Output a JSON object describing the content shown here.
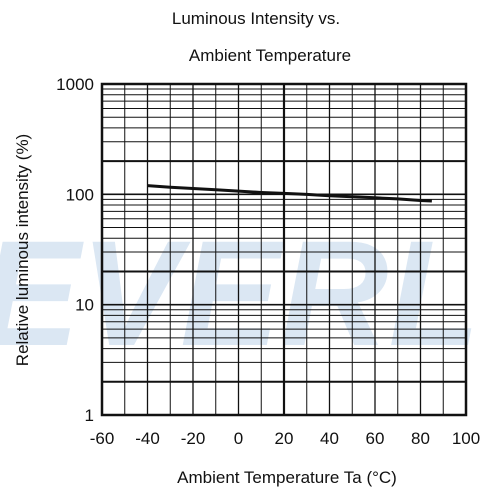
{
  "chart_data": {
    "type": "line",
    "title_lines": [
      "Luminous Intensity vs.",
      "Ambient Temperature"
    ],
    "xlabel": "Ambient Temperature Ta (°C)",
    "ylabel": "Relative luminous intensity  (%)",
    "watermark": "EVERL",
    "xlim": [
      -60,
      100
    ],
    "ylim": [
      1,
      1000
    ],
    "y_scale": "log",
    "grid": true,
    "x_ticks": [
      {
        "value": -60,
        "label": "-60"
      },
      {
        "value": -40,
        "label": "-40"
      },
      {
        "value": -20,
        "label": "-20"
      },
      {
        "value": 0,
        "label": "0"
      },
      {
        "value": 20,
        "label": "20"
      },
      {
        "value": 40,
        "label": "40"
      },
      {
        "value": 60,
        "label": "60"
      },
      {
        "value": 80,
        "label": "80"
      },
      {
        "value": 100,
        "label": "100"
      }
    ],
    "y_ticks": [
      {
        "value": 1,
        "label": "1"
      },
      {
        "value": 10,
        "label": "10"
      },
      {
        "value": 100,
        "label": "100"
      },
      {
        "value": 1000,
        "label": "1000"
      }
    ],
    "series": [
      {
        "color": "#111111",
        "x": [
          -40,
          -30,
          -20,
          -10,
          0,
          10,
          20,
          30,
          40,
          50,
          60,
          70,
          80,
          85
        ],
        "y": [
          120,
          116,
          113,
          110,
          107,
          104,
          102,
          100,
          97,
          95,
          93,
          91,
          88,
          87
        ]
      }
    ]
  }
}
